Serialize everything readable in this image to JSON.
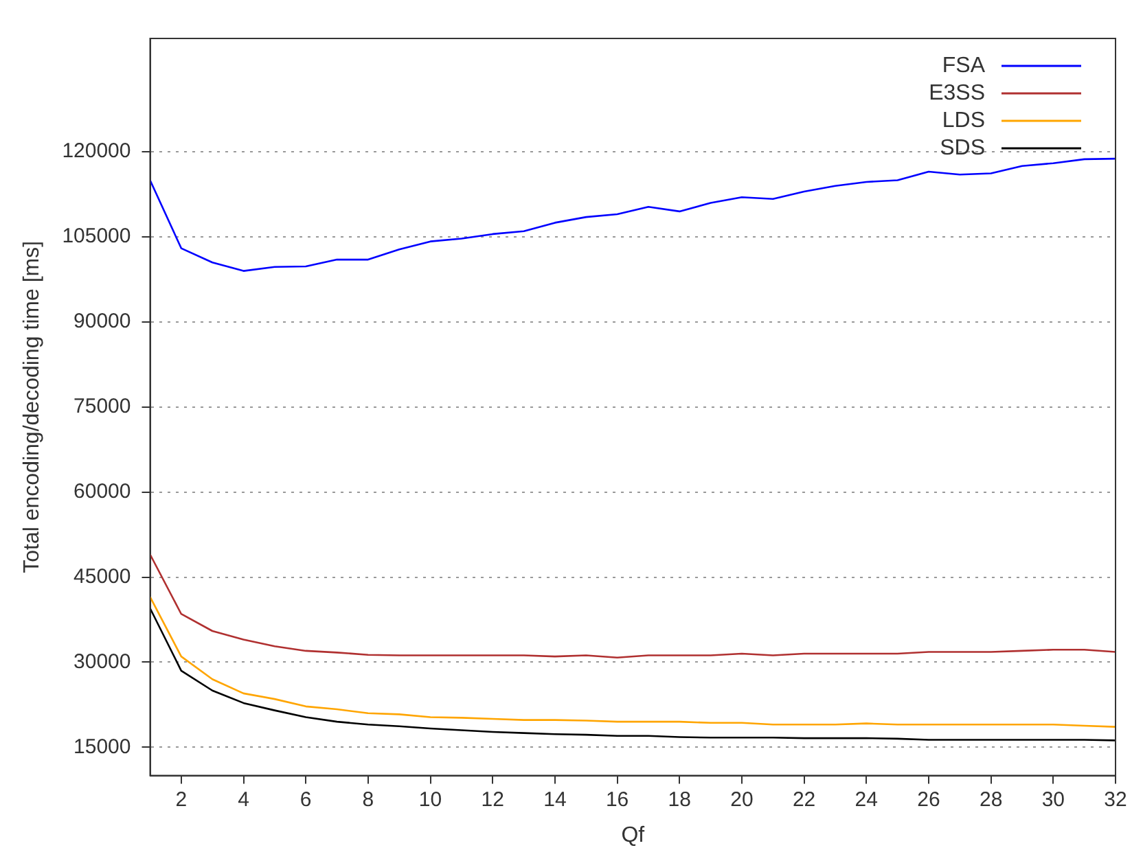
{
  "chart_data": {
    "type": "line",
    "xlabel": "Qf",
    "ylabel": "Total encoding/decoding time [ms]",
    "x": [
      1,
      2,
      3,
      4,
      5,
      6,
      7,
      8,
      9,
      10,
      11,
      12,
      13,
      14,
      15,
      16,
      17,
      18,
      19,
      20,
      21,
      22,
      23,
      24,
      25,
      26,
      27,
      28,
      29,
      30,
      31,
      32
    ],
    "series": [
      {
        "name": "FSA",
        "color": "#0000ff",
        "values": [
          115000,
          103000,
          100500,
          99000,
          99700,
          99800,
          101000,
          101000,
          102800,
          104200,
          104700,
          105500,
          106000,
          107500,
          108500,
          109000,
          110300,
          109500,
          111000,
          112000,
          111700,
          113000,
          114000,
          114700,
          115000,
          116500,
          116000,
          116200,
          117500,
          118000,
          118700,
          118800
        ]
      },
      {
        "name": "E3SS",
        "color": "#b03030",
        "values": [
          49000,
          38500,
          35500,
          34000,
          32800,
          32000,
          31700,
          31300,
          31200,
          31200,
          31200,
          31200,
          31200,
          31000,
          31200,
          30800,
          31200,
          31200,
          31200,
          31500,
          31200,
          31500,
          31500,
          31500,
          31500,
          31800,
          31800,
          31800,
          32000,
          32200,
          32200,
          31800
        ]
      },
      {
        "name": "LDS",
        "color": "#ffa500",
        "values": [
          41500,
          31000,
          27000,
          24500,
          23500,
          22200,
          21700,
          21000,
          20800,
          20300,
          20200,
          20000,
          19800,
          19800,
          19700,
          19500,
          19500,
          19500,
          19300,
          19300,
          19000,
          19000,
          19000,
          19200,
          19000,
          19000,
          19000,
          19000,
          19000,
          19000,
          18800,
          18600
        ]
      },
      {
        "name": "SDS",
        "color": "#000000",
        "values": [
          39500,
          28500,
          25000,
          22800,
          21500,
          20300,
          19500,
          19000,
          18700,
          18300,
          18000,
          17700,
          17500,
          17300,
          17200,
          17000,
          17000,
          16800,
          16700,
          16700,
          16700,
          16600,
          16600,
          16600,
          16500,
          16300,
          16300,
          16300,
          16300,
          16300,
          16300,
          16200
        ]
      }
    ],
    "xlim": [
      1,
      32
    ],
    "xticks": [
      2,
      4,
      6,
      8,
      10,
      12,
      14,
      16,
      18,
      20,
      22,
      24,
      26,
      28,
      30,
      32
    ],
    "ylim": [
      10000,
      140000
    ],
    "yticks": [
      15000,
      30000,
      45000,
      60000,
      75000,
      90000,
      105000,
      120000
    ],
    "grid": "y",
    "legend": "top right",
    "marker": "none",
    "line_style": "solid"
  }
}
